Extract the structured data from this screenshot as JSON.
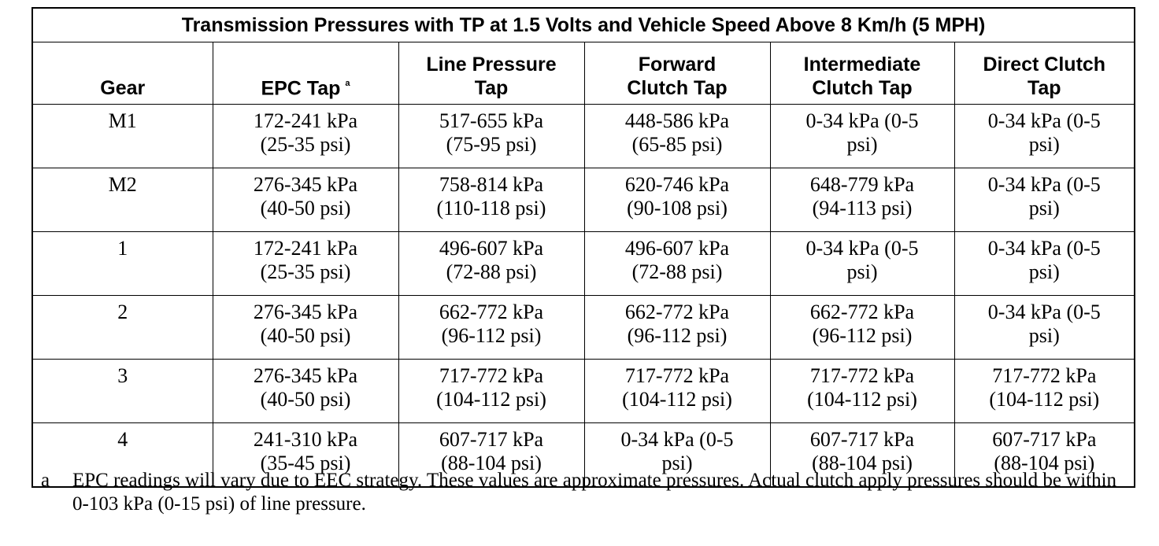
{
  "table": {
    "title": "Transmission Pressures with TP at 1.5 Volts and Vehicle Speed Above 8 Km/h (5 MPH)",
    "headers": [
      {
        "lines": [
          "Gear"
        ]
      },
      {
        "lines": [
          "EPC Tap"
        ],
        "footnote": "a"
      },
      {
        "lines": [
          "Line Pressure",
          "Tap"
        ]
      },
      {
        "lines": [
          "Forward",
          "Clutch Tap"
        ]
      },
      {
        "lines": [
          "Intermediate",
          "Clutch Tap"
        ]
      },
      {
        "lines": [
          "Direct Clutch",
          "Tap"
        ]
      }
    ],
    "rows": [
      [
        {
          "lines": [
            "M1"
          ]
        },
        {
          "lines": [
            "172-241 kPa",
            "(25-35 psi)"
          ]
        },
        {
          "lines": [
            "517-655 kPa",
            "(75-95 psi)"
          ]
        },
        {
          "lines": [
            "448-586 kPa",
            "(65-85 psi)"
          ]
        },
        {
          "lines": [
            "0-34 kPa (0-5",
            "psi)"
          ]
        },
        {
          "lines": [
            "0-34 kPa (0-5",
            "psi)"
          ]
        }
      ],
      [
        {
          "lines": [
            "M2"
          ]
        },
        {
          "lines": [
            "276-345 kPa",
            "(40-50 psi)"
          ]
        },
        {
          "lines": [
            "758-814 kPa",
            "(110-118 psi)"
          ]
        },
        {
          "lines": [
            "620-746 kPa",
            "(90-108 psi)"
          ]
        },
        {
          "lines": [
            "648-779 kPa",
            "(94-113 psi)"
          ]
        },
        {
          "lines": [
            "0-34 kPa (0-5",
            "psi)"
          ]
        }
      ],
      [
        {
          "lines": [
            "1"
          ]
        },
        {
          "lines": [
            "172-241 kPa",
            "(25-35 psi)"
          ]
        },
        {
          "lines": [
            "496-607 kPa",
            "(72-88 psi)"
          ]
        },
        {
          "lines": [
            "496-607 kPa",
            "(72-88 psi)"
          ]
        },
        {
          "lines": [
            "0-34 kPa (0-5",
            "psi)"
          ]
        },
        {
          "lines": [
            "0-34 kPa (0-5",
            "psi)"
          ]
        }
      ],
      [
        {
          "lines": [
            "2"
          ]
        },
        {
          "lines": [
            "276-345 kPa",
            "(40-50 psi)"
          ]
        },
        {
          "lines": [
            "662-772 kPa",
            "(96-112 psi)"
          ]
        },
        {
          "lines": [
            "662-772 kPa",
            "(96-112 psi)"
          ]
        },
        {
          "lines": [
            "662-772 kPa",
            "(96-112 psi)"
          ]
        },
        {
          "lines": [
            "0-34 kPa (0-5",
            "psi)"
          ]
        }
      ],
      [
        {
          "lines": [
            "3"
          ]
        },
        {
          "lines": [
            "276-345 kPa",
            "(40-50 psi)"
          ]
        },
        {
          "lines": [
            "717-772 kPa",
            "(104-112 psi)"
          ]
        },
        {
          "lines": [
            "717-772 kPa",
            "(104-112 psi)"
          ]
        },
        {
          "lines": [
            "717-772 kPa",
            "(104-112 psi)"
          ]
        },
        {
          "lines": [
            "717-772 kPa",
            "(104-112 psi)"
          ]
        }
      ],
      [
        {
          "lines": [
            "4"
          ]
        },
        {
          "lines": [
            "241-310 kPa",
            "(35-45 psi)"
          ]
        },
        {
          "lines": [
            "607-717 kPa",
            "(88-104 psi)"
          ]
        },
        {
          "lines": [
            "0-34 kPa (0-5",
            "psi)"
          ]
        },
        {
          "lines": [
            "607-717 kPa",
            "(88-104 psi)"
          ]
        },
        {
          "lines": [
            "607-717 kPa",
            "(88-104 psi)"
          ]
        }
      ]
    ]
  },
  "footnote": {
    "letter": "a",
    "text": "EPC readings will vary due to EEC strategy. These values are approximate pressures. Actual clutch apply pressures should be within 0-103 kPa (0-15 psi) of line pressure."
  }
}
